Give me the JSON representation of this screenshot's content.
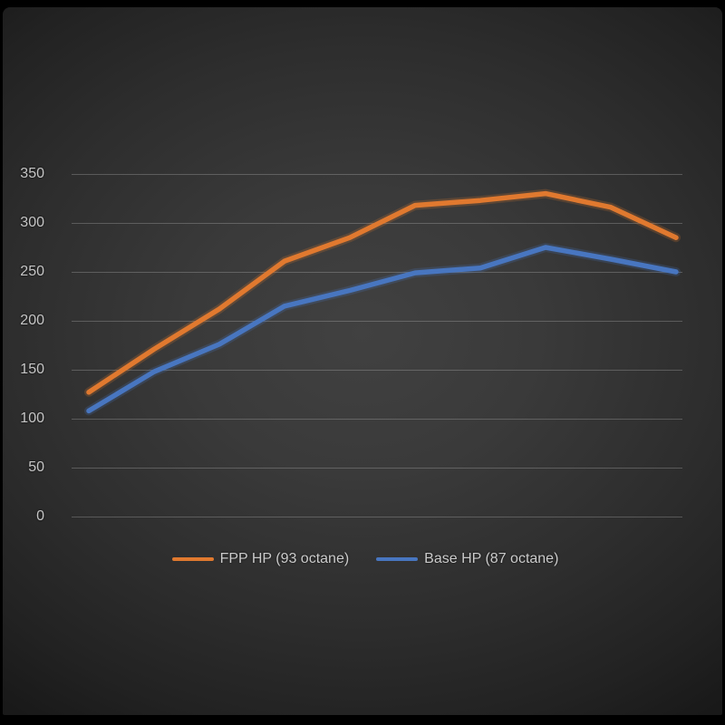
{
  "chart_data": {
    "type": "line",
    "title": "",
    "xlabel": "",
    "ylabel": "",
    "x_axis": {
      "labels_visible": false,
      "num_points": 10
    },
    "y_axis": {
      "ticks": [
        350,
        300,
        250,
        200,
        150,
        100,
        50,
        0
      ],
      "range": [
        0,
        350
      ]
    },
    "grid": true,
    "legend_position": "bottom-center",
    "series": [
      {
        "name": "FPP HP (93 octane)",
        "color": "#e0792f",
        "values": [
          127,
          171,
          212,
          261,
          285,
          318,
          323,
          330,
          316,
          285
        ]
      },
      {
        "name": "Base HP (87 octane)",
        "color": "#4876c0",
        "values": [
          108,
          148,
          176,
          215,
          231,
          249,
          254,
          275,
          263,
          250
        ]
      }
    ]
  },
  "colors": {
    "frame": "#000000",
    "gridline": "#6a6a6a",
    "axis_label_text": "#c6c6c6",
    "legend_text": "#cbcbcb"
  }
}
